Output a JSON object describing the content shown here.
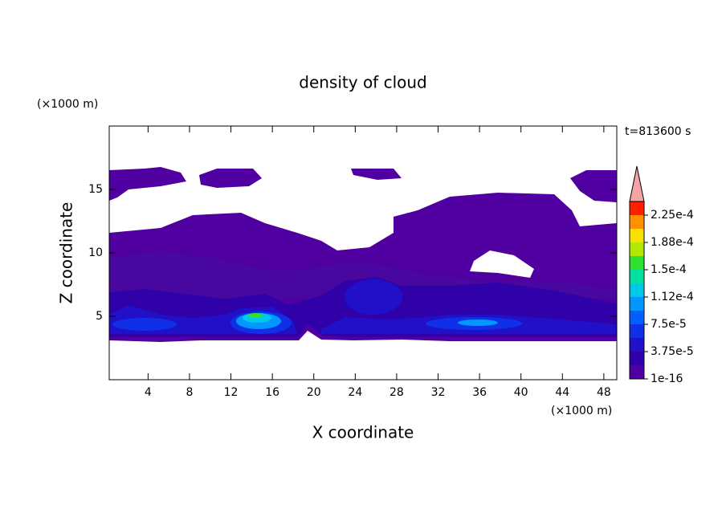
{
  "chart_data": {
    "type": "contour",
    "title": "density of cloud",
    "xlabel": "X coordinate",
    "ylabel": "Z coordinate",
    "x_unit": "(×1000 m)",
    "y_unit": "(×1000 m)",
    "annotation": "t=813600 s",
    "xlim": [
      0.25,
      49.25
    ],
    "ylim": [
      0,
      20
    ],
    "xticks": [
      4,
      8,
      12,
      16,
      20,
      24,
      28,
      32,
      36,
      40,
      44,
      48
    ],
    "yticks": [
      5,
      10,
      15
    ],
    "colorbar": {
      "clim": [
        1e-16,
        0.00024375
      ],
      "ticks": [
        {
          "value": 1e-16,
          "label": "1e-16"
        },
        {
          "value": 3.75e-05,
          "label": "3.75e-5"
        },
        {
          "value": 7.5e-05,
          "label": "7.5e-5"
        },
        {
          "value": 0.0001125,
          "label": "1.12e-4"
        },
        {
          "value": 0.00015,
          "label": "1.5e-4"
        },
        {
          "value": 0.0001875,
          "label": "1.88e-4"
        },
        {
          "value": 0.000225,
          "label": "2.25e-4"
        }
      ],
      "colors": [
        "#5000a0",
        "#3000a8",
        "#2010c8",
        "#1030e8",
        "#0060ff",
        "#0098ff",
        "#00c8e8",
        "#00e0a0",
        "#30e030",
        "#b0e800",
        "#f8e000",
        "#ff9000",
        "#ff2000"
      ],
      "extend_color": "#f4a4a4"
    }
  }
}
